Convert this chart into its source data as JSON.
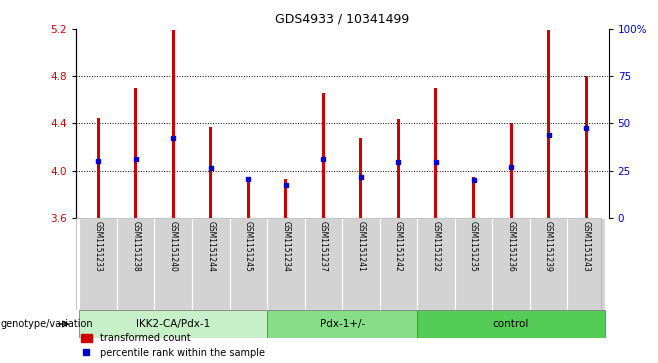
{
  "title": "GDS4933 / 10341499",
  "samples": [
    "GSM1151233",
    "GSM1151238",
    "GSM1151240",
    "GSM1151244",
    "GSM1151245",
    "GSM1151234",
    "GSM1151237",
    "GSM1151241",
    "GSM1151242",
    "GSM1151232",
    "GSM1151235",
    "GSM1151236",
    "GSM1151239",
    "GSM1151243"
  ],
  "red_values": [
    4.45,
    4.7,
    5.19,
    4.37,
    3.95,
    3.93,
    4.66,
    4.28,
    4.44,
    4.7,
    3.95,
    4.4,
    5.19,
    4.8
  ],
  "blue_values": [
    4.08,
    4.1,
    4.28,
    4.02,
    3.93,
    3.88,
    4.1,
    3.95,
    4.07,
    4.07,
    3.92,
    4.03,
    4.3,
    4.36
  ],
  "ylim_left": [
    3.6,
    5.2
  ],
  "ylim_right": [
    0,
    100
  ],
  "yticks_left": [
    3.6,
    4.0,
    4.4,
    4.8,
    5.2
  ],
  "yticks_right": [
    0,
    25,
    50,
    75,
    100
  ],
  "ytick_labels_right": [
    "0",
    "25",
    "50",
    "75",
    "100%"
  ],
  "groups": [
    {
      "label": "IKK2-CA/Pdx-1",
      "start": 0,
      "end": 5
    },
    {
      "label": "Pdx-1+/-",
      "start": 5,
      "end": 9
    },
    {
      "label": "control",
      "start": 9,
      "end": 14
    }
  ],
  "group_light_colors": [
    "#c8f0c8",
    "#88dd88",
    "#55cc55"
  ],
  "group_label": "genotype/variation",
  "bar_color": "#cc0000",
  "dot_color": "#0000cc",
  "legend_red": "transformed count",
  "legend_blue": "percentile rank within the sample",
  "bar_width": 0.08,
  "xlabel_color": "#cc0000",
  "ylabel_right_color": "#0000cc",
  "grid_color": "#000000",
  "grid_ticks": [
    4.0,
    4.4,
    4.8
  ],
  "bg_color": "#ffffff",
  "label_area_color": "#d3d3d3"
}
